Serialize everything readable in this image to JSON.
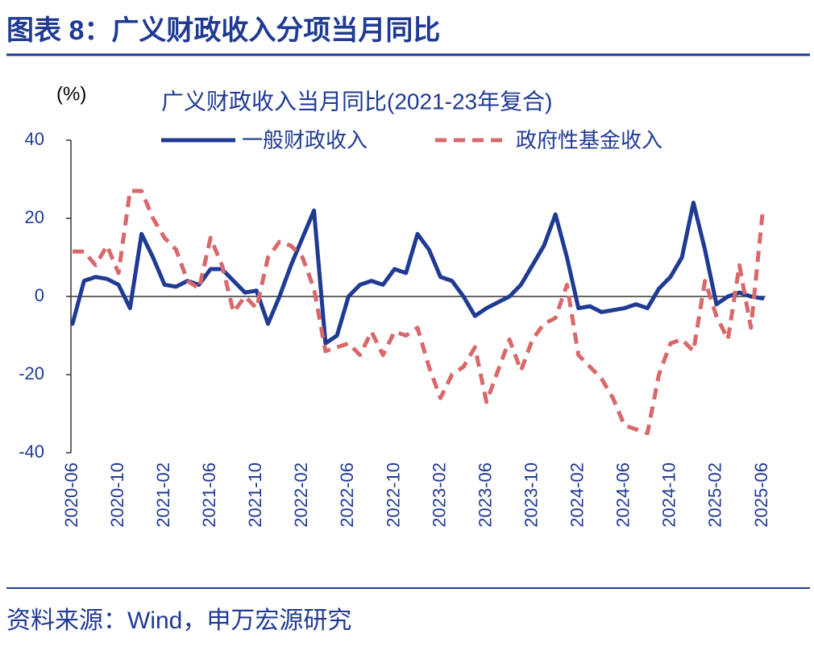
{
  "header_title": "图表 8：广义财政收入分项当月同比",
  "source": "资料来源：Wind，申万宏源研究",
  "chart_data": {
    "type": "line",
    "title": "广义财政收入当月同比(2021-23年复合)",
    "y_label": "(%)",
    "categories": [
      "2020-06",
      null,
      null,
      null,
      "2020-10",
      null,
      null,
      null,
      "2021-02",
      null,
      null,
      null,
      "2021-06",
      null,
      null,
      null,
      "2021-10",
      null,
      null,
      null,
      "2022-02",
      null,
      null,
      null,
      "2022-06",
      null,
      null,
      null,
      "2022-10",
      null,
      null,
      null,
      "2023-02",
      null,
      null,
      null,
      "2023-06",
      null,
      null,
      null,
      "2023-10",
      null,
      null,
      null,
      "2024-02",
      null,
      null,
      null,
      "2024-06",
      null,
      null,
      null,
      "2024-10",
      null,
      null,
      null,
      "2025-02",
      null,
      null,
      null,
      "2025-06"
    ],
    "series": [
      {
        "name": "一般财政收入",
        "color": "#1f3a93",
        "dashed": false,
        "values": [
          -7,
          4,
          5,
          4.5,
          3,
          -3,
          16,
          10,
          3,
          2.5,
          4,
          3,
          7,
          7,
          4,
          1,
          1.5,
          -7,
          0,
          8,
          15,
          22,
          -12,
          -10,
          0,
          3,
          4,
          3,
          7,
          6,
          16,
          12,
          5,
          4,
          0,
          -5,
          -3,
          -1.5,
          0,
          3,
          8,
          13,
          21,
          10,
          -3,
          -2.5,
          -4,
          -3.5,
          -3,
          -2,
          -3,
          2,
          5,
          10,
          24,
          12,
          -2,
          0,
          1,
          0,
          -0.5
        ]
      },
      {
        "name": "政府性基金收入",
        "color": "#d9686a",
        "dashed": true,
        "values": [
          11.5,
          11.5,
          8,
          13,
          6,
          27,
          27,
          20,
          15,
          12,
          4,
          2,
          15,
          8,
          -4,
          0,
          -3,
          10,
          14,
          13,
          10,
          2,
          -14,
          -13,
          -12,
          -15,
          -9,
          -15,
          -9,
          -10,
          -8,
          -18,
          -26,
          -20,
          -18,
          -13,
          -27,
          -19,
          -11,
          -19,
          -11,
          -7,
          -5.5,
          3,
          -15,
          -18,
          -21,
          -26,
          -33,
          -34,
          -35,
          -20,
          -12,
          -11,
          -14,
          4,
          -5,
          -11,
          8,
          -8,
          21
        ]
      }
    ],
    "ylim": [
      -40,
      40
    ],
    "yticks": [
      -40,
      -20,
      0,
      20,
      40
    ]
  }
}
